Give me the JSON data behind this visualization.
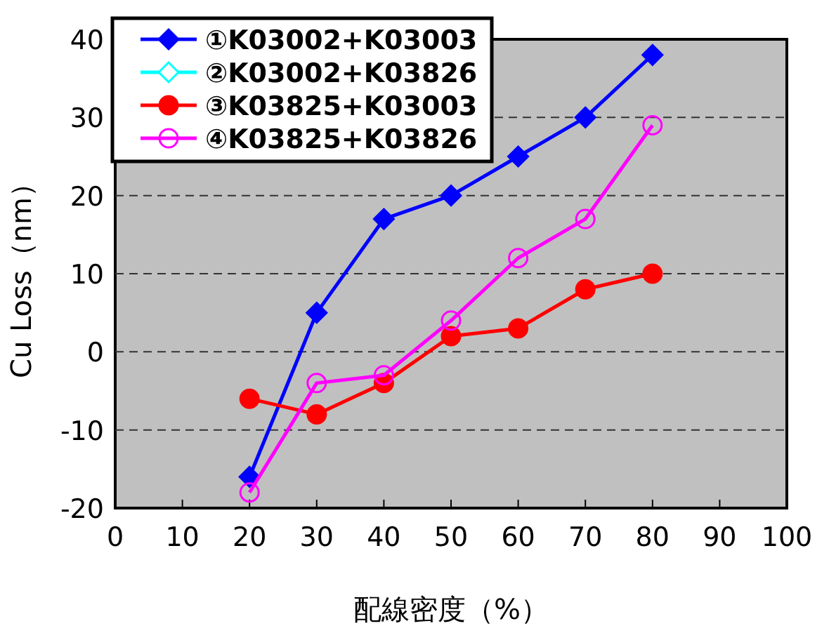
{
  "chart_data": {
    "type": "line",
    "xlabel": "配線密度（%）",
    "ylabel": "Cu Loss（nm）",
    "x": [
      20,
      30,
      40,
      50,
      60,
      70,
      80
    ],
    "series": [
      {
        "name": "①K03002+K03003",
        "color": "#0000ff",
        "marker": "diamond",
        "values": [
          -16,
          5,
          17,
          20,
          25,
          30,
          38
        ]
      },
      {
        "name": "②K03002+K03826",
        "color": "#00ffff",
        "marker": "diamond",
        "values": [
          null,
          null,
          null,
          null,
          null,
          null,
          null
        ]
      },
      {
        "name": "③K03825+K03003",
        "color": "#ff0000",
        "marker": "circle",
        "values": [
          -6,
          -8,
          -4,
          2,
          3,
          8,
          10
        ]
      },
      {
        "name": "④K03825+K03826",
        "color": "#ff00ff",
        "marker": "circle",
        "values": [
          -18,
          -4,
          -3,
          4,
          12,
          17,
          29
        ]
      }
    ],
    "xlim": [
      0,
      100
    ],
    "xticks": [
      0,
      10,
      20,
      30,
      40,
      50,
      60,
      70,
      80,
      90,
      100
    ],
    "ylim": [
      -20,
      40
    ],
    "yticks": [
      -20,
      -10,
      0,
      10,
      20,
      30,
      40
    ],
    "grid": "y",
    "legend": "top left"
  }
}
